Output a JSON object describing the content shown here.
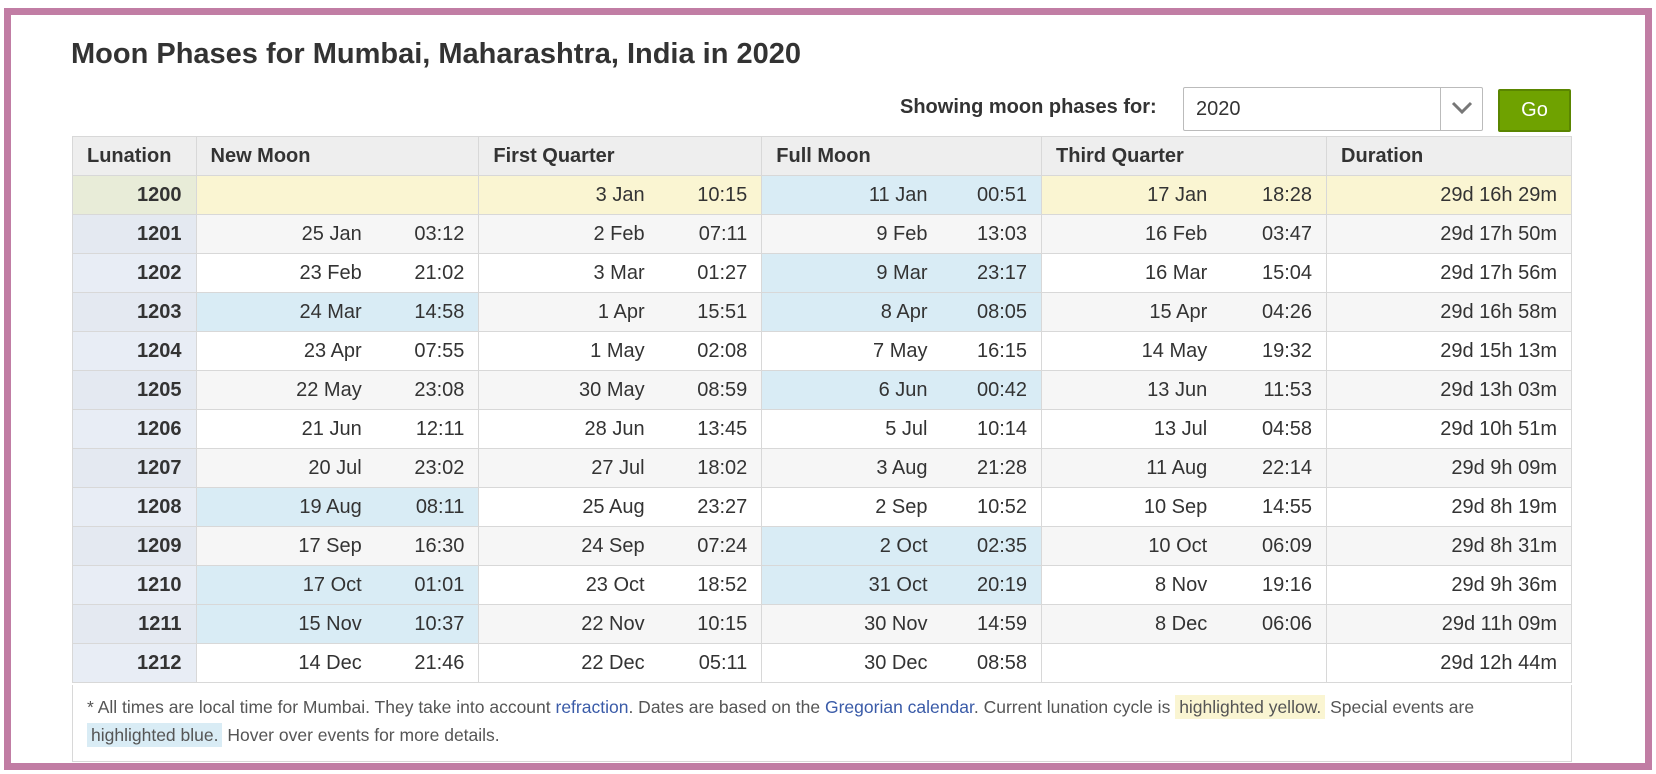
{
  "title": "Moon Phases for Mumbai, Maharashtra, India in 2020",
  "selector": {
    "label": "Showing moon phases for:",
    "value": "2020",
    "go_label": "Go"
  },
  "headers": [
    "Lunation",
    "New Moon",
    "First Quarter",
    "Full Moon",
    "Third Quarter",
    "Duration"
  ],
  "colors": {
    "highlight_yellow": "#faf5d2",
    "highlight_blue": "#d9ecf5",
    "go_button": "#6fa200",
    "frame": "#c17da4"
  },
  "rows": [
    {
      "lun": "1200",
      "nm_d": "",
      "nm_t": "",
      "fq_d": "3 Jan",
      "fq_t": "10:15",
      "fm_d": "11 Jan",
      "fm_t": "00:51",
      "tq_d": "17 Jan",
      "tq_t": "18:28",
      "dur": "29d 16h 29m",
      "current": true,
      "blue": [
        "fm"
      ]
    },
    {
      "lun": "1201",
      "nm_d": "25 Jan",
      "nm_t": "03:12",
      "fq_d": "2 Feb",
      "fq_t": "07:11",
      "fm_d": "9 Feb",
      "fm_t": "13:03",
      "tq_d": "16 Feb",
      "tq_t": "03:47",
      "dur": "29d 17h 50m",
      "blue": []
    },
    {
      "lun": "1202",
      "nm_d": "23 Feb",
      "nm_t": "21:02",
      "fq_d": "3 Mar",
      "fq_t": "01:27",
      "fm_d": "9 Mar",
      "fm_t": "23:17",
      "tq_d": "16 Mar",
      "tq_t": "15:04",
      "dur": "29d 17h 56m",
      "blue": [
        "fm"
      ]
    },
    {
      "lun": "1203",
      "nm_d": "24 Mar",
      "nm_t": "14:58",
      "fq_d": "1 Apr",
      "fq_t": "15:51",
      "fm_d": "8 Apr",
      "fm_t": "08:05",
      "tq_d": "15 Apr",
      "tq_t": "04:26",
      "dur": "29d 16h 58m",
      "blue": [
        "nm",
        "fm"
      ]
    },
    {
      "lun": "1204",
      "nm_d": "23 Apr",
      "nm_t": "07:55",
      "fq_d": "1 May",
      "fq_t": "02:08",
      "fm_d": "7 May",
      "fm_t": "16:15",
      "tq_d": "14 May",
      "tq_t": "19:32",
      "dur": "29d 15h 13m",
      "blue": []
    },
    {
      "lun": "1205",
      "nm_d": "22 May",
      "nm_t": "23:08",
      "fq_d": "30 May",
      "fq_t": "08:59",
      "fm_d": "6 Jun",
      "fm_t": "00:42",
      "tq_d": "13 Jun",
      "tq_t": "11:53",
      "dur": "29d 13h 03m",
      "blue": [
        "fm"
      ]
    },
    {
      "lun": "1206",
      "nm_d": "21 Jun",
      "nm_t": "12:11",
      "fq_d": "28 Jun",
      "fq_t": "13:45",
      "fm_d": "5 Jul",
      "fm_t": "10:14",
      "tq_d": "13 Jul",
      "tq_t": "04:58",
      "dur": "29d 10h 51m",
      "blue": []
    },
    {
      "lun": "1207",
      "nm_d": "20 Jul",
      "nm_t": "23:02",
      "fq_d": "27 Jul",
      "fq_t": "18:02",
      "fm_d": "3 Aug",
      "fm_t": "21:28",
      "tq_d": "11 Aug",
      "tq_t": "22:14",
      "dur": "29d 9h 09m",
      "blue": []
    },
    {
      "lun": "1208",
      "nm_d": "19 Aug",
      "nm_t": "08:11",
      "fq_d": "25 Aug",
      "fq_t": "23:27",
      "fm_d": "2 Sep",
      "fm_t": "10:52",
      "tq_d": "10 Sep",
      "tq_t": "14:55",
      "dur": "29d 8h 19m",
      "blue": [
        "nm"
      ]
    },
    {
      "lun": "1209",
      "nm_d": "17 Sep",
      "nm_t": "16:30",
      "fq_d": "24 Sep",
      "fq_t": "07:24",
      "fm_d": "2 Oct",
      "fm_t": "02:35",
      "tq_d": "10 Oct",
      "tq_t": "06:09",
      "dur": "29d 8h 31m",
      "blue": [
        "fm"
      ]
    },
    {
      "lun": "1210",
      "nm_d": "17 Oct",
      "nm_t": "01:01",
      "fq_d": "23 Oct",
      "fq_t": "18:52",
      "fm_d": "31 Oct",
      "fm_t": "20:19",
      "tq_d": "8 Nov",
      "tq_t": "19:16",
      "dur": "29d 9h 36m",
      "blue": [
        "nm",
        "fm"
      ]
    },
    {
      "lun": "1211",
      "nm_d": "15 Nov",
      "nm_t": "10:37",
      "fq_d": "22 Nov",
      "fq_t": "10:15",
      "fm_d": "30 Nov",
      "fm_t": "14:59",
      "tq_d": "8 Dec",
      "tq_t": "06:06",
      "dur": "29d 11h 09m",
      "blue": [
        "nm"
      ]
    },
    {
      "lun": "1212",
      "nm_d": "14 Dec",
      "nm_t": "21:46",
      "fq_d": "22 Dec",
      "fq_t": "05:11",
      "fm_d": "30 Dec",
      "fm_t": "08:58",
      "tq_d": "",
      "tq_t": "",
      "dur": "29d 12h 44m",
      "blue": []
    }
  ],
  "footnote": {
    "p1": "* All times are local time for Mumbai. They take into account ",
    "link1": "refraction",
    "p2": ". Dates are based on the ",
    "link2": "Gregorian calendar",
    "p3": ". Current lunation cycle is ",
    "yellow": "highlighted yellow.",
    "p4": " Special events are ",
    "blue": "highlighted blue.",
    "p5": " Hover over events for more details."
  }
}
